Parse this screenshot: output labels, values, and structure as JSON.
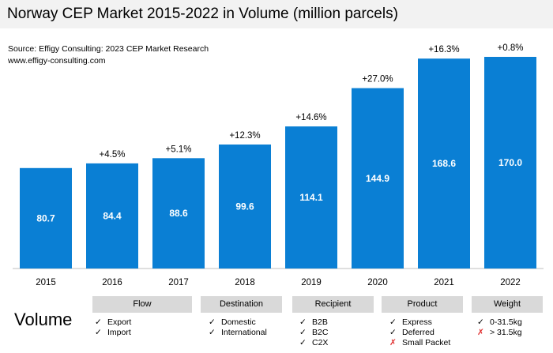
{
  "title": "Norway CEP Market 2015-2022 in Volume (million parcels)",
  "source_line1": "Source: Effigy Consulting: 2023 CEP Market Research",
  "source_line2": "www.effigy-consulting.com",
  "volume_label": "Volume",
  "colors": {
    "bar": "#0a7fd4",
    "title_bg": "#f2f2f2",
    "cat_bg": "#d9d9d9",
    "check": "#000000",
    "cross": "#e03030"
  },
  "chart_data": {
    "type": "bar",
    "title": "Norway CEP Market 2015-2022 in Volume (million parcels)",
    "xlabel": "",
    "ylabel": "",
    "categories": [
      "2015",
      "2016",
      "2017",
      "2018",
      "2019",
      "2020",
      "2021",
      "2022"
    ],
    "values": [
      80.7,
      84.4,
      88.6,
      99.6,
      114.1,
      144.9,
      168.6,
      170.0
    ],
    "value_labels": [
      "80.7",
      "84.4",
      "88.6",
      "99.6",
      "114.1",
      "144.9",
      "168.6",
      "170.0"
    ],
    "growth_labels": [
      "",
      "+4.5%",
      "+5.1%",
      "+12.3%",
      "+14.6%",
      "+27.0%",
      "+16.3%",
      "+0.8%"
    ],
    "ylim": [
      0,
      170.0
    ]
  },
  "categories": [
    {
      "label": "Flow",
      "items": [
        {
          "text": "Export",
          "mark": "check"
        },
        {
          "text": "Import",
          "mark": "check"
        }
      ]
    },
    {
      "label": "Destination",
      "items": [
        {
          "text": "Domestic",
          "mark": "check"
        },
        {
          "text": "International",
          "mark": "check"
        }
      ]
    },
    {
      "label": "Recipient",
      "items": [
        {
          "text": "B2B",
          "mark": "check"
        },
        {
          "text": "B2C",
          "mark": "check"
        },
        {
          "text": "C2X",
          "mark": "check"
        }
      ]
    },
    {
      "label": "Product",
      "items": [
        {
          "text": "Express",
          "mark": "check"
        },
        {
          "text": "Deferred",
          "mark": "check"
        },
        {
          "text": "Small Packet",
          "mark": "cross"
        }
      ]
    },
    {
      "label": "Weight",
      "items": [
        {
          "text": "0-31.5kg",
          "mark": "check"
        },
        {
          "text": "> 31.5kg",
          "mark": "cross"
        }
      ]
    }
  ]
}
